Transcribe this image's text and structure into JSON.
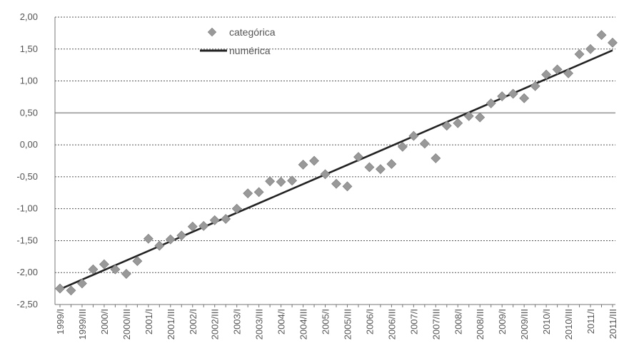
{
  "chart_data": {
    "type": "scatter",
    "ylim": [
      -2.5,
      2.0
    ],
    "yticks": [
      "2,00",
      "1,50",
      "1,00",
      "0,50",
      "0,00",
      "-0,50",
      "-1,00",
      "-1,50",
      "-2,00",
      "-2,50"
    ],
    "ytick_values": [
      2.0,
      1.5,
      1.0,
      0.5,
      0.0,
      -0.5,
      -1.0,
      -1.5,
      -2.0,
      -2.5
    ],
    "grid": true,
    "legend_position": "top-center",
    "x_labels": [
      "1999/I",
      "1999/III",
      "2000/I",
      "2000/III",
      "2001/I",
      "2001/III",
      "2002/I",
      "2002/III",
      "2003/I",
      "2003/III",
      "2004/I",
      "2004/III",
      "2005/I",
      "2005/III",
      "2006/I",
      "2006/III",
      "2007/I",
      "2007/III",
      "2008/I",
      "2008/III",
      "2009/I",
      "2009/III",
      "2010/I",
      "2010/III",
      "2011/I",
      "2011/III"
    ],
    "series": [
      {
        "name": "categórica",
        "kind": "scatter",
        "marker": "diamond",
        "color": "#999999",
        "values": [
          -2.25,
          -2.28,
          -2.17,
          -1.95,
          -1.87,
          -1.95,
          -2.02,
          -1.82,
          -1.47,
          -1.58,
          -1.48,
          -1.42,
          -1.28,
          -1.27,
          -1.18,
          -1.16,
          -1.0,
          -0.76,
          -0.74,
          -0.57,
          -0.58,
          -0.56,
          -0.31,
          -0.25,
          -0.46,
          -0.61,
          -0.65,
          -0.19,
          -0.35,
          -0.38,
          -0.3,
          -0.03,
          0.14,
          0.02,
          -0.21,
          0.3,
          0.34,
          0.45,
          0.43,
          0.65,
          0.76,
          0.8,
          0.73,
          0.92,
          1.1,
          1.18,
          1.12,
          1.42,
          1.5,
          1.72,
          1.6
        ]
      },
      {
        "name": "numérica",
        "kind": "line",
        "color": "#222222",
        "values": [
          -2.26,
          1.48
        ]
      }
    ]
  }
}
